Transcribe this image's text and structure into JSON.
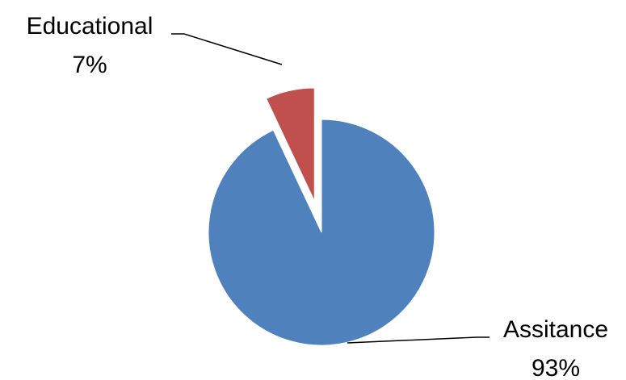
{
  "chart_data": {
    "type": "pie",
    "title": "",
    "slices": [
      {
        "label": "Assitance",
        "value": 93,
        "percent_label": "93%",
        "color": "#4F81BD",
        "exploded": false
      },
      {
        "label": "Educational",
        "value": 7,
        "percent_label": "7%",
        "color": "#C0504D",
        "exploded": true
      }
    ],
    "data_labels": "category and percentage, outside with leader lines",
    "legend": "none"
  }
}
